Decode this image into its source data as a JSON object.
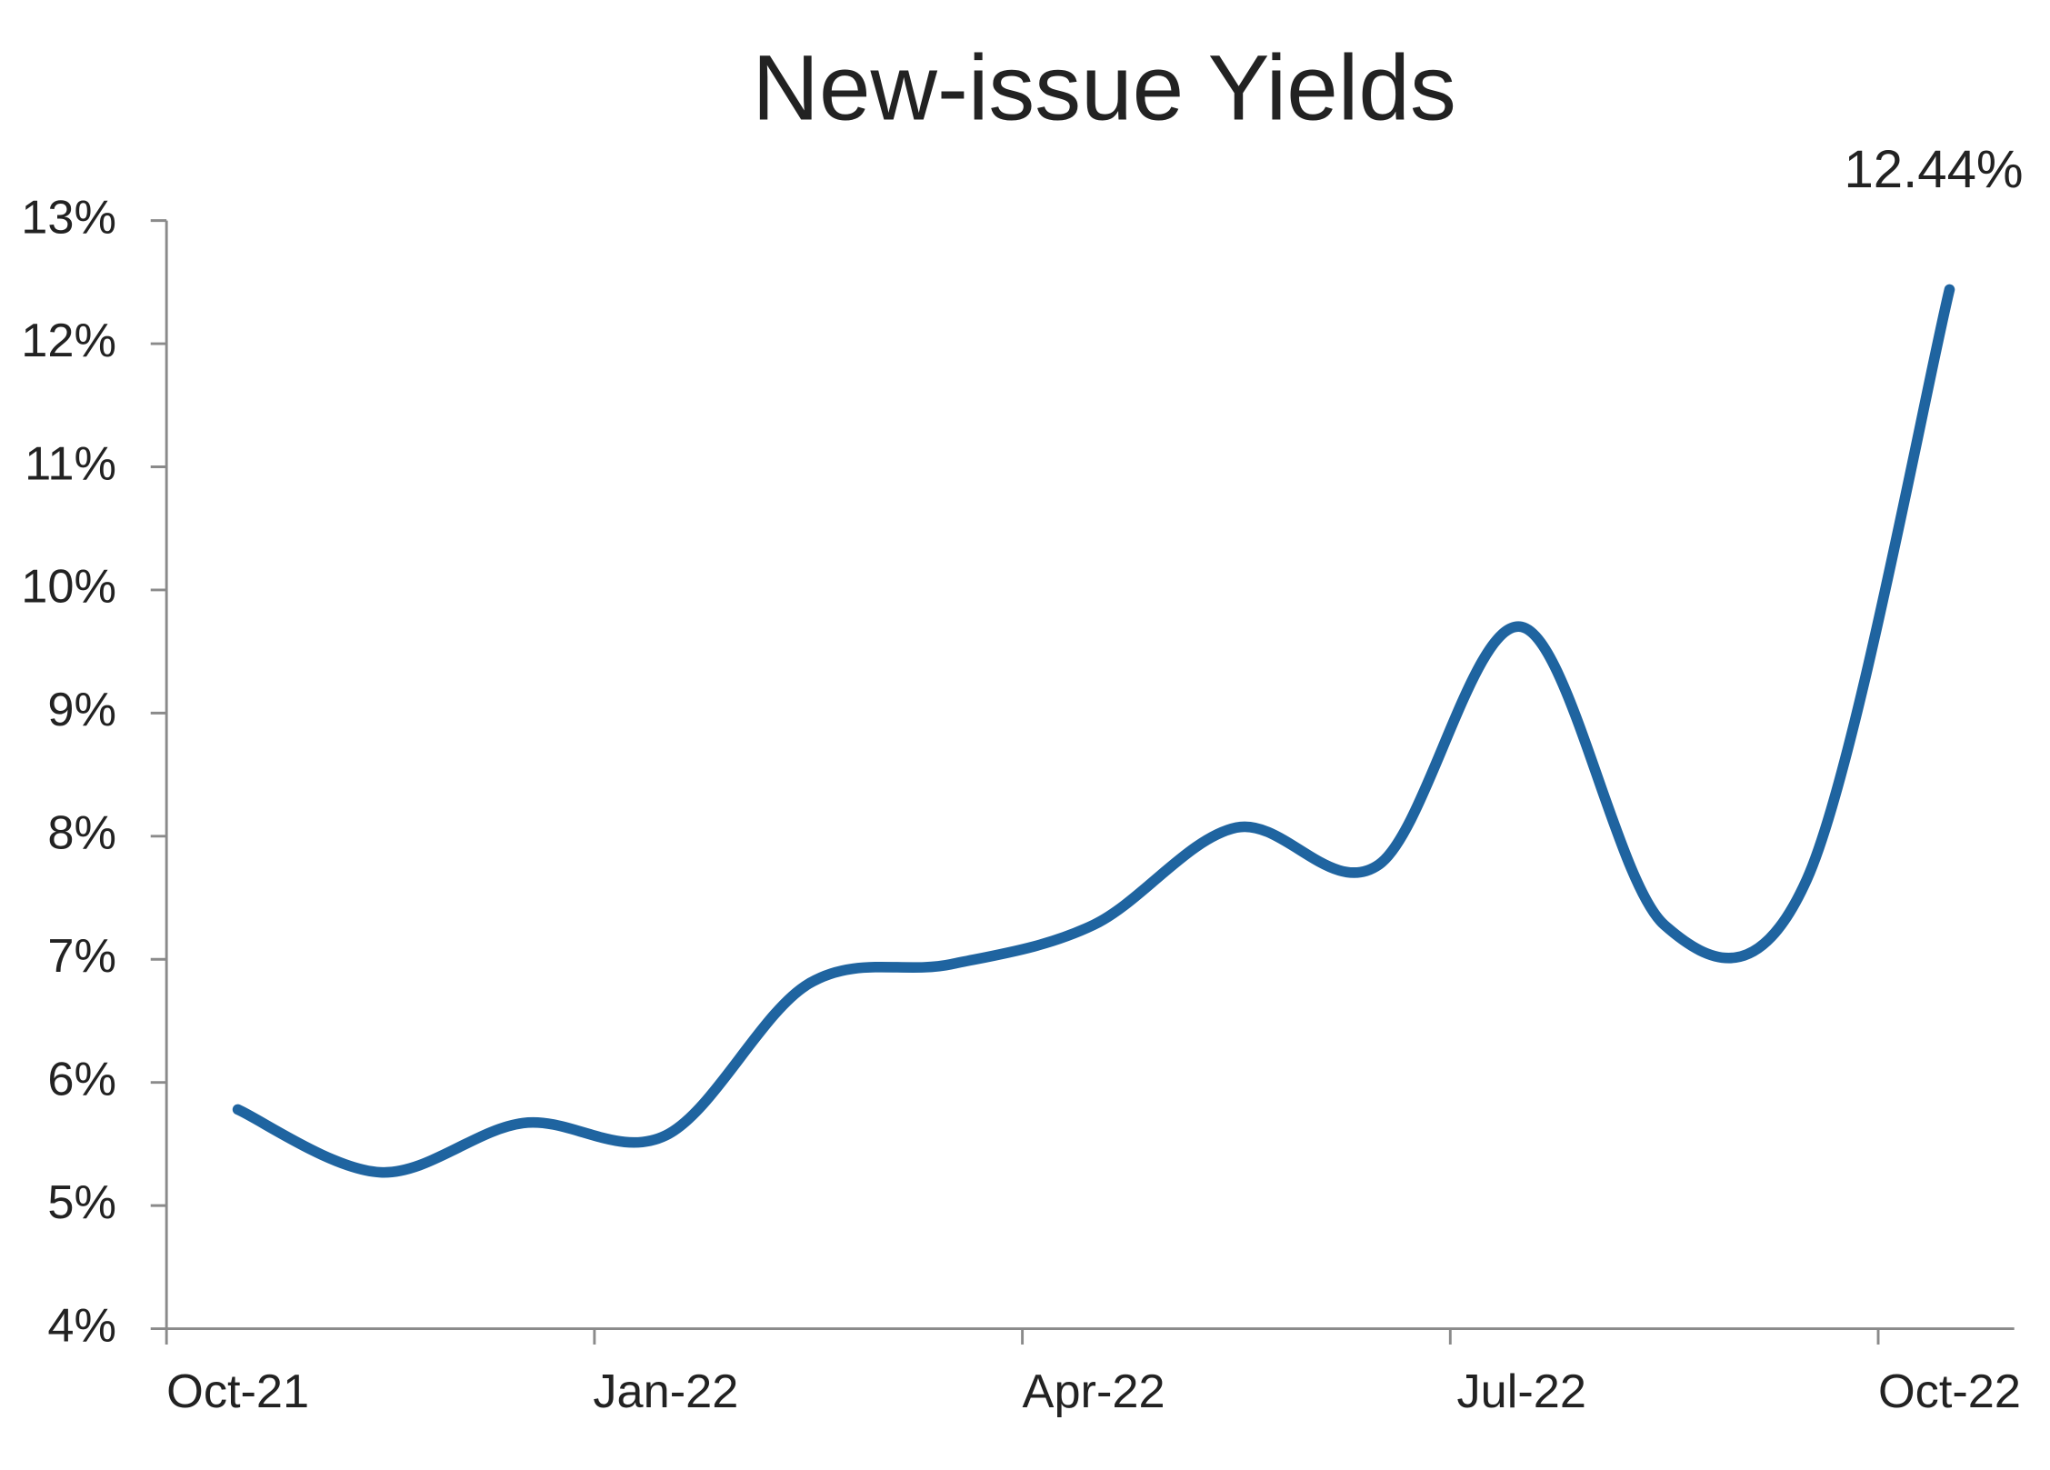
{
  "chart_data": {
    "type": "line",
    "title": "New-issue Yields",
    "categories": [
      "Oct-21",
      null,
      null,
      "Jan-22",
      null,
      null,
      "Apr-22",
      null,
      null,
      "Jul-22",
      null,
      null,
      "Oct-22"
    ],
    "series": [
      {
        "name": "New-issue Yields",
        "color": "#1f64a0",
        "values": [
          5.78,
          5.27,
          5.67,
          5.57,
          6.8,
          6.96,
          7.28,
          8.07,
          7.77,
          9.7,
          7.28,
          7.65,
          12.44
        ],
        "value_labels": [
          null,
          null,
          null,
          null,
          null,
          null,
          null,
          null,
          null,
          null,
          null,
          null,
          "12.44%"
        ]
      }
    ],
    "ylim": [
      4,
      13
    ],
    "yticks": [
      {
        "value": 4,
        "label": "4%"
      },
      {
        "value": 5,
        "label": "5%"
      },
      {
        "value": 6,
        "label": "6%"
      },
      {
        "value": 7,
        "label": "7%"
      },
      {
        "value": 8,
        "label": "8%"
      },
      {
        "value": 9,
        "label": "9%"
      },
      {
        "value": 10,
        "label": "10%"
      },
      {
        "value": 11,
        "label": "11%"
      },
      {
        "value": 12,
        "label": "12%"
      },
      {
        "value": 13,
        "label": "13%"
      }
    ],
    "grid": false,
    "smooth": true
  }
}
